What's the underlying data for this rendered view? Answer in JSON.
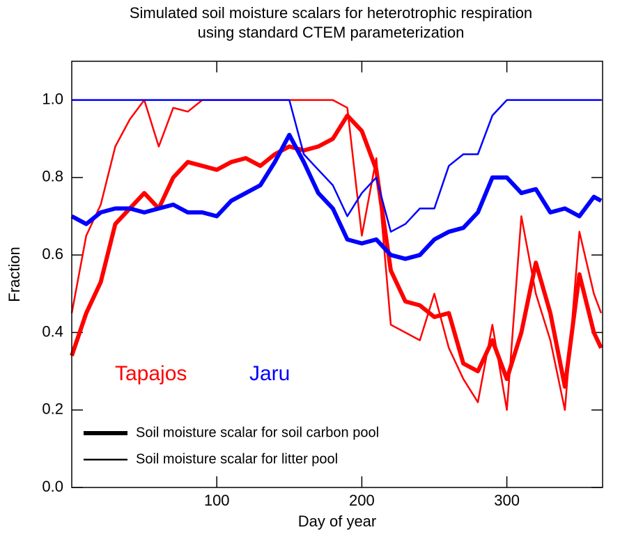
{
  "chart_data": {
    "type": "line",
    "title": [
      "Simulated soil moisture scalars for heterotrophic respiration",
      "using standard CTEM parameterization"
    ],
    "x_label": "Day of year",
    "y_label": "Fraction",
    "x": [
      0,
      10,
      20,
      30,
      40,
      50,
      60,
      70,
      80,
      90,
      100,
      110,
      120,
      130,
      140,
      150,
      160,
      170,
      180,
      190,
      200,
      210,
      220,
      230,
      240,
      250,
      260,
      270,
      280,
      290,
      300,
      310,
      320,
      330,
      340,
      350,
      360,
      365
    ],
    "series": [
      {
        "name": "Tapajos",
        "color": "#ff0000",
        "pool": "Soil moisture scalar for soil carbon pool",
        "width": 6,
        "values": [
          0.34,
          0.45,
          0.53,
          0.68,
          0.72,
          0.76,
          0.72,
          0.8,
          0.84,
          0.83,
          0.82,
          0.84,
          0.85,
          0.83,
          0.86,
          0.88,
          0.87,
          0.88,
          0.9,
          0.96,
          0.92,
          0.82,
          0.56,
          0.48,
          0.47,
          0.44,
          0.45,
          0.32,
          0.3,
          0.38,
          0.28,
          0.4,
          0.58,
          0.45,
          0.26,
          0.55,
          0.4,
          0.36
        ]
      },
      {
        "name": "Tapajos",
        "color": "#ff0000",
        "pool": "Soil moisture scalar for litter pool",
        "width": 2.5,
        "values": [
          0.45,
          0.65,
          0.73,
          0.88,
          0.95,
          1.0,
          0.88,
          0.98,
          0.97,
          1.0,
          1.0,
          1.0,
          1.0,
          1.0,
          1.0,
          1.0,
          1.0,
          1.0,
          1.0,
          0.98,
          0.65,
          0.85,
          0.42,
          0.4,
          0.38,
          0.5,
          0.36,
          0.28,
          0.22,
          0.42,
          0.2,
          0.7,
          0.5,
          0.38,
          0.2,
          0.66,
          0.5,
          0.45
        ]
      },
      {
        "name": "Jaru",
        "color": "#0000ff",
        "pool": "Soil moisture scalar for soil carbon pool",
        "width": 6,
        "values": [
          0.7,
          0.68,
          0.71,
          0.72,
          0.72,
          0.71,
          0.72,
          0.73,
          0.71,
          0.71,
          0.7,
          0.74,
          0.76,
          0.78,
          0.84,
          0.91,
          0.84,
          0.76,
          0.72,
          0.64,
          0.63,
          0.64,
          0.6,
          0.59,
          0.6,
          0.64,
          0.66,
          0.67,
          0.71,
          0.8,
          0.8,
          0.76,
          0.77,
          0.71,
          0.72,
          0.7,
          0.75,
          0.74
        ]
      },
      {
        "name": "Jaru",
        "color": "#0000ff",
        "pool": "Soil moisture scalar for litter pool",
        "width": 2.5,
        "values": [
          1.0,
          1.0,
          1.0,
          1.0,
          1.0,
          1.0,
          1.0,
          1.0,
          1.0,
          1.0,
          1.0,
          1.0,
          1.0,
          1.0,
          1.0,
          1.0,
          0.86,
          0.82,
          0.78,
          0.7,
          0.76,
          0.8,
          0.66,
          0.68,
          0.72,
          0.72,
          0.83,
          0.86,
          0.86,
          0.96,
          1.0,
          1.0,
          1.0,
          1.0,
          1.0,
          1.0,
          1.0,
          1.0
        ]
      }
    ],
    "xlim": [
      0,
      366
    ],
    "xticks": [
      100,
      200,
      300
    ],
    "ylim": [
      0,
      1.1
    ],
    "yticks": [
      {
        "value": 0,
        "label": "0.0"
      },
      0.2,
      0.4,
      0.6,
      0.8,
      {
        "value": 1,
        "label": "1.0"
      }
    ],
    "grid": false
  }
}
